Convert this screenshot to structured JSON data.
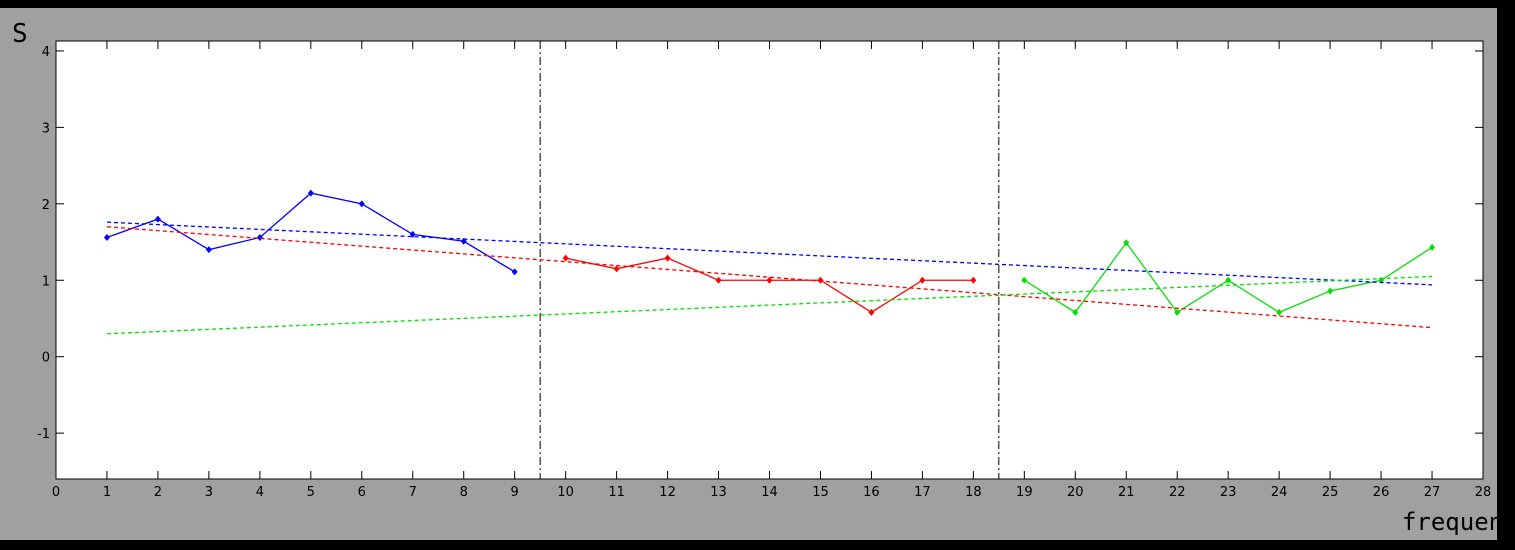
{
  "chart_data": {
    "type": "line",
    "xlabel": "frequency",
    "ylabel": "S",
    "xlim": [
      0,
      28
    ],
    "ylim": [
      -1.6,
      4.13
    ],
    "xticks": [
      0,
      1,
      2,
      3,
      4,
      5,
      6,
      7,
      8,
      9,
      10,
      11,
      12,
      13,
      14,
      15,
      16,
      17,
      18,
      19,
      20,
      21,
      22,
      23,
      24,
      25,
      26,
      27,
      28
    ],
    "yticks": [
      -1,
      0,
      1,
      2,
      3,
      4
    ],
    "vlines": [
      9.5,
      18.5
    ],
    "series": [
      {
        "color": "#0000ff",
        "style": "solid",
        "markers": true,
        "x": [
          1,
          2,
          3,
          4,
          5,
          6,
          7,
          8,
          9
        ],
        "values": [
          1.56,
          1.8,
          1.4,
          1.56,
          2.14,
          2.0,
          1.6,
          1.51,
          1.11
        ]
      },
      {
        "color": "#ff0000",
        "style": "solid",
        "markers": true,
        "x": [
          10,
          11,
          12,
          13,
          14,
          15,
          16,
          17,
          18
        ],
        "values": [
          1.29,
          1.15,
          1.29,
          1.0,
          1.0,
          1.0,
          0.58,
          1.0,
          1.0
        ]
      },
      {
        "color": "#00e000",
        "style": "solid",
        "markers": true,
        "x": [
          19,
          20,
          21,
          22,
          23,
          24,
          25,
          26,
          27
        ],
        "values": [
          1.0,
          0.58,
          1.49,
          0.58,
          1.0,
          0.58,
          0.86,
          1.0,
          1.43
        ]
      },
      {
        "color": "#0000ff",
        "style": "dashed",
        "markers": false,
        "x": [
          1,
          27
        ],
        "values": [
          1.76,
          0.94
        ]
      },
      {
        "color": "#ff0000",
        "style": "dashed",
        "markers": false,
        "x": [
          1,
          27
        ],
        "values": [
          1.7,
          0.38
        ]
      },
      {
        "color": "#00e000",
        "style": "dashed",
        "markers": false,
        "x": [
          1,
          27
        ],
        "values": [
          0.3,
          1.05
        ]
      }
    ]
  }
}
